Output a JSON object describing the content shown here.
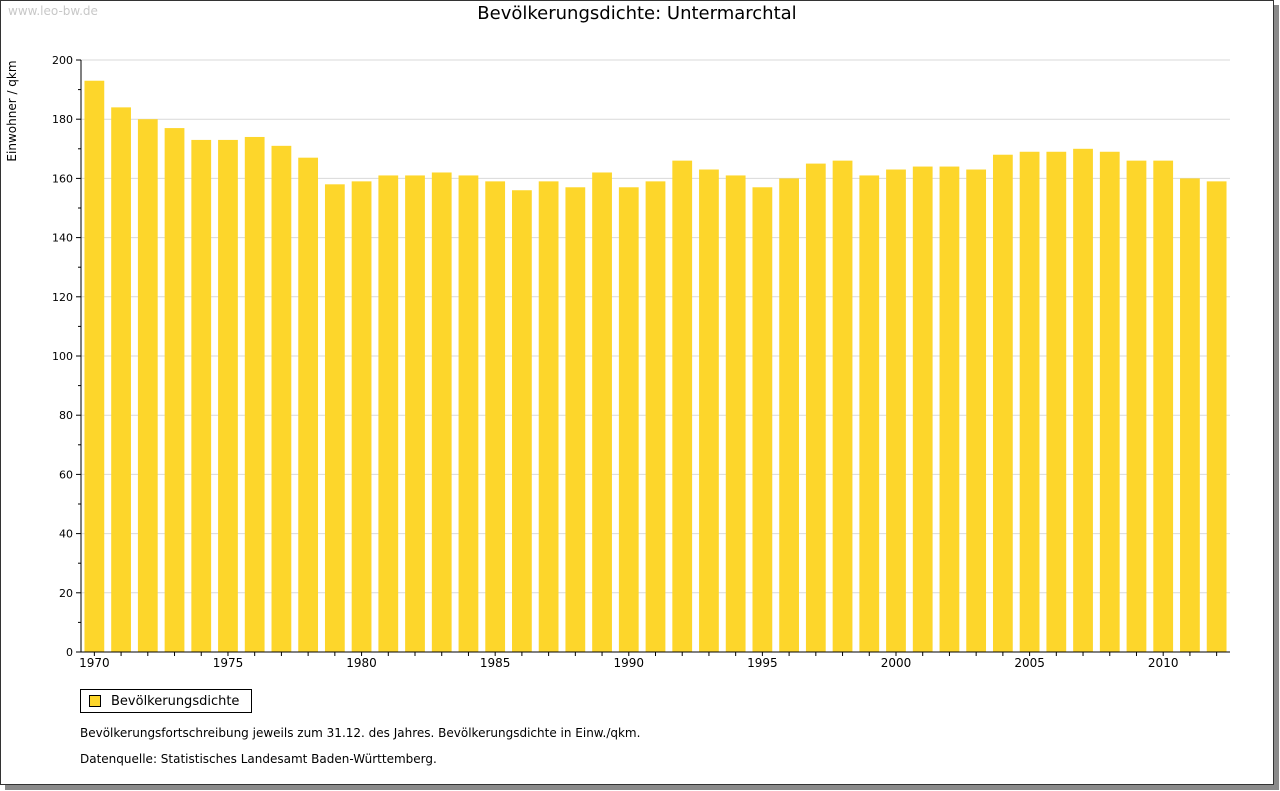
{
  "watermark": "www.leo-bw.de",
  "colors": {
    "bar": "#FDD62B",
    "grid": "#d9d9d9",
    "axis": "#000000"
  },
  "chart_data": {
    "type": "bar",
    "title": "Bevölkerungsdichte: Untermarchtal",
    "xlabel": "",
    "ylabel": "Einwohner / qkm",
    "ylim": [
      0,
      200
    ],
    "yticks": [
      0,
      20,
      40,
      60,
      80,
      100,
      120,
      140,
      160,
      180,
      200
    ],
    "xtick_labels": [
      "1970",
      "1975",
      "1980",
      "1985",
      "1990",
      "1995",
      "2000",
      "2005",
      "2010"
    ],
    "grid": true,
    "legend_position": "bottom-left",
    "categories": [
      1970,
      1971,
      1972,
      1973,
      1974,
      1975,
      1976,
      1977,
      1978,
      1979,
      1980,
      1981,
      1982,
      1983,
      1984,
      1985,
      1986,
      1987,
      1988,
      1989,
      1990,
      1991,
      1992,
      1993,
      1994,
      1995,
      1996,
      1997,
      1998,
      1999,
      2000,
      2001,
      2002,
      2003,
      2004,
      2005,
      2006,
      2007,
      2008,
      2009,
      2010,
      2011,
      2012
    ],
    "series": [
      {
        "name": "Bevölkerungsdichte",
        "values": [
          193,
          184,
          180,
          177,
          173,
          173,
          174,
          171,
          167,
          158,
          159,
          161,
          161,
          162,
          161,
          159,
          156,
          159,
          157,
          162,
          157,
          159,
          166,
          163,
          161,
          157,
          160,
          165,
          166,
          161,
          163,
          164,
          164,
          163,
          168,
          169,
          169,
          170,
          169,
          166,
          166,
          160,
          159
        ]
      }
    ]
  },
  "notes": {
    "line1": "Bevölkerungsfortschreibung jeweils zum 31.12. des Jahres. Bevölkerungsdichte in Einw./qkm.",
    "line2": "Datenquelle: Statistisches Landesamt Baden-Württemberg."
  }
}
